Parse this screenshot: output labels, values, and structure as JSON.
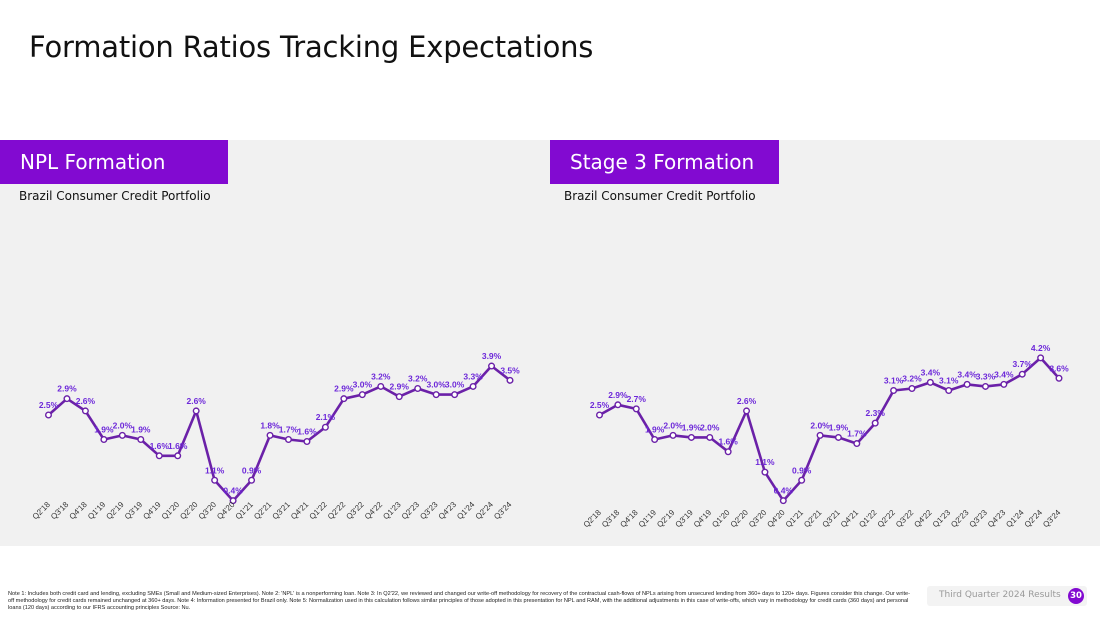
{
  "slide": {
    "title": "Formation Ratios Tracking Expectations",
    "footnote": "Note 1: Includes both credit card and lending, excluding SMEs (Small and Medium-sized Enterprises). Note 2: 'NPL' is a nonperforming loan. Note 3: In Q2'22, we reviewed and changed our write-off methodology for recovery of the contractual cash-flows of NPLs arising from unsecured lending from 360+ days to 120+ days. Figures consider this change. Our write-off methodology for credit cards remained unchanged at 360+ days. Note 4: Information presented for Brazil only. Note 5: Normalization used in this calculation follows similar principles of those adopted in this presentation for NPL and RAM, with the additional adjustments in this case of write-offs, which vary in methodology for credit cards (360 days) and personal loans (120 days) according to our IFRS accounting principles Source: Nu.",
    "footer_label": "Third Quarter 2024 Results",
    "page_number": "30"
  },
  "colors": {
    "brand_purple": "#820ad1",
    "line_purple": "#6b21a8",
    "label_purple": "#6d28d9",
    "panel_bg": "#f1f1f1"
  },
  "chart_data": [
    {
      "type": "line",
      "title": "NPL Formation",
      "subtitle": "Brazil Consumer Credit Portfolio",
      "categories": [
        "Q2'18",
        "Q3'18",
        "Q4'18",
        "Q1'19",
        "Q2'19",
        "Q3'19",
        "Q4'19",
        "Q1'20",
        "Q2'20",
        "Q3'20",
        "Q4'20",
        "Q1'21",
        "Q2'21",
        "Q3'21",
        "Q4'21",
        "Q1'22",
        "Q2'22",
        "Q3'22",
        "Q4'22",
        "Q1'23",
        "Q2'23",
        "Q3'23",
        "Q4'23",
        "Q1'24",
        "Q2'24",
        "Q3'24"
      ],
      "values": [
        2.5,
        2.9,
        2.6,
        1.9,
        2.0,
        1.9,
        1.6,
        1.6,
        2.6,
        1.1,
        0.4,
        0.9,
        1.8,
        1.7,
        1.6,
        2.1,
        2.9,
        3.0,
        3.2,
        2.9,
        3.2,
        3.0,
        3.0,
        3.3,
        3.9,
        3.5
      ],
      "labels": [
        "2.5%",
        "2.9%",
        "2.6%",
        "1.9%",
        "2.0%",
        "1.9%",
        "1.6%",
        "1.6%",
        "2.6%",
        "1.1%",
        "0.4%",
        "0.9%",
        "1.8%",
        "1.7%",
        "1.6%",
        "2.1%",
        "2.9%",
        "3.0%",
        "3.2%",
        "2.9%",
        "3.2%",
        "3.0%",
        "3.0%",
        "3.3%",
        "3.9%",
        "3.5%"
      ],
      "plot_values": [
        2.5,
        2.9,
        2.6,
        1.9,
        2.0,
        1.9,
        1.5,
        1.5,
        2.6,
        0.9,
        0.4,
        0.9,
        2.0,
        1.9,
        1.85,
        2.2,
        2.9,
        3.0,
        3.2,
        2.95,
        3.15,
        3.0,
        3.0,
        3.2,
        3.7,
        3.35
      ],
      "ylim": [
        0,
        4.5
      ],
      "grid": false,
      "legend": "none"
    },
    {
      "type": "line",
      "title": "Stage 3 Formation",
      "subtitle": "Brazil Consumer Credit Portfolio",
      "categories": [
        "Q2'18",
        "Q3'18",
        "Q4'18",
        "Q1'19",
        "Q2'19",
        "Q3'19",
        "Q4'19",
        "Q1'20",
        "Q2'20",
        "Q3'20",
        "Q4'20",
        "Q1'21",
        "Q2'21",
        "Q3'21",
        "Q4'21",
        "Q1'22",
        "Q2'22",
        "Q3'22",
        "Q4'22",
        "Q1'23",
        "Q2'23",
        "Q3'23",
        "Q4'23",
        "Q1'24",
        "Q2'24",
        "Q3'24"
      ],
      "values": [
        2.5,
        2.9,
        2.7,
        1.9,
        2.0,
        1.9,
        2.0,
        1.6,
        2.6,
        1.1,
        0.4,
        0.9,
        2.0,
        1.9,
        1.7,
        2.3,
        3.1,
        3.2,
        3.4,
        3.1,
        3.4,
        3.3,
        3.4,
        3.7,
        4.2,
        3.6
      ],
      "labels": [
        "2.5%",
        "2.9%",
        "2.7%",
        "1.9%",
        "2.0%",
        "1.9%",
        "2.0%",
        "1.6%",
        "2.6%",
        "1.1%",
        "0.4%",
        "0.9%",
        "2.0%",
        "1.9%",
        "1.7%",
        "2.3%",
        "3.1%",
        "3.2%",
        "3.4%",
        "3.1%",
        "3.4%",
        "3.3%",
        "3.4%",
        "3.7%",
        "4.2%",
        "3.6%"
      ],
      "plot_values": [
        2.5,
        2.75,
        2.65,
        1.9,
        2.0,
        1.95,
        1.95,
        1.6,
        2.6,
        1.1,
        0.4,
        0.9,
        2.0,
        1.95,
        1.8,
        2.3,
        3.1,
        3.15,
        3.3,
        3.1,
        3.25,
        3.2,
        3.25,
        3.5,
        3.9,
        3.4
      ],
      "ylim": [
        0,
        4.5
      ],
      "grid": false,
      "legend": "none"
    }
  ]
}
